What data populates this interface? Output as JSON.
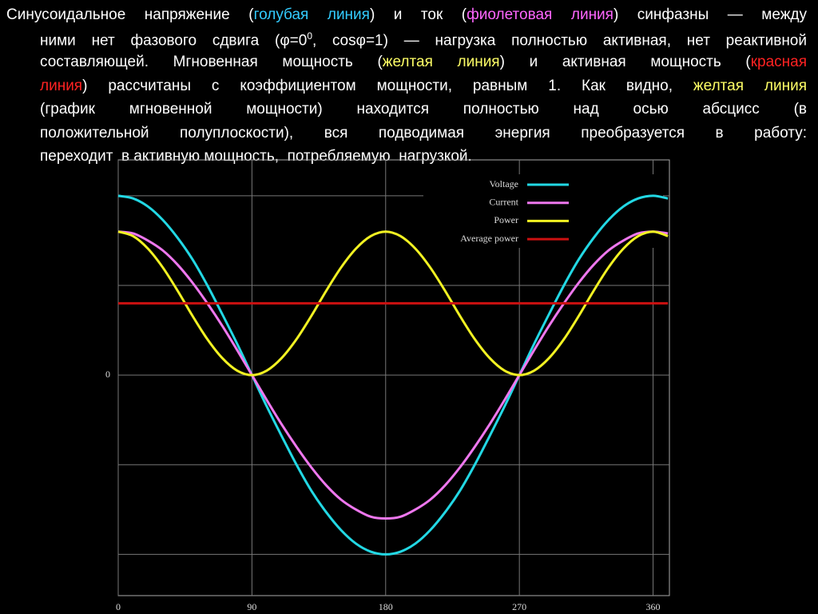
{
  "text": {
    "lines": [
      [
        {
          "text": "Синусоидальное  напряжение  (",
          "color": "#ffffff"
        },
        {
          "text": "голубая линия",
          "color": "#33ccff"
        },
        {
          "text": ")  и ток (",
          "color": "#ffffff"
        },
        {
          "text": "фиолетовая линия",
          "color": "#ff66ff"
        },
        {
          "text": ")  синфазны — между",
          "color": "#ffffff"
        }
      ],
      [
        {
          "text": "ними  нет фазового сдвига (φ=0",
          "color": "#ffffff"
        },
        {
          "text": "0",
          "color": "#ffffff",
          "sup": true
        },
        {
          "text": ", cosφ=1) — нагрузка полностью  активная,  нет реактивной",
          "color": "#ffffff"
        }
      ],
      [
        {
          "text": "составляющей. Мгновенная мощность (",
          "color": "#ffffff"
        },
        {
          "text": "желтая линия",
          "color": "#ffff66"
        },
        {
          "text": ")  и активная мощность (",
          "color": "#ffffff"
        },
        {
          "text": "красная",
          "color": "#ff2222"
        }
      ],
      [
        {
          "text": "линия",
          "color": "#ff2222"
        },
        {
          "text": ")  рассчитаны с коэффициентом  мощности,  равным  1. Как видно, ",
          "color": "#ffffff"
        },
        {
          "text": "желтая линия",
          "color": "#ffff66"
        }
      ],
      [
        {
          "text": "(график мгновенной  мощности)  находится полностью  над осью абсцисс (в",
          "color": "#ffffff"
        }
      ],
      [
        {
          "text": "положительной  полуплоскости),  вся подводимая  энергия преобразуется  в работу:",
          "color": "#ffffff"
        }
      ],
      [
        {
          "text": "переходит  в активную мощность,  потребляемую  нагрузкой.",
          "color": "#ffffff"
        }
      ]
    ]
  },
  "chart_data": {
    "type": "line",
    "x": [
      0,
      10,
      20,
      30,
      40,
      50,
      60,
      70,
      80,
      90,
      100,
      110,
      120,
      130,
      140,
      150,
      160,
      170,
      180,
      190,
      200,
      210,
      220,
      230,
      240,
      250,
      260,
      270,
      280,
      290,
      300,
      310,
      320,
      330,
      340,
      350,
      360,
      370
    ],
    "series": [
      {
        "name": "Voltage",
        "color": "#22d8e4",
        "values": [
          2,
          1.97,
          1.88,
          1.73,
          1.53,
          1.29,
          1,
          0.68,
          0.35,
          0,
          -0.35,
          -0.68,
          -1,
          -1.29,
          -1.53,
          -1.73,
          -1.88,
          -1.97,
          -2,
          -1.97,
          -1.88,
          -1.73,
          -1.53,
          -1.29,
          -1,
          -0.68,
          -0.35,
          0,
          0.35,
          0.68,
          1,
          1.29,
          1.53,
          1.73,
          1.88,
          1.97,
          2,
          1.97
        ]
      },
      {
        "name": "Current",
        "color": "#ee77ee",
        "values": [
          1.6,
          1.58,
          1.5,
          1.39,
          1.23,
          1.03,
          0.8,
          0.55,
          0.28,
          0,
          -0.28,
          -0.55,
          -0.8,
          -1.03,
          -1.23,
          -1.39,
          -1.5,
          -1.58,
          -1.6,
          -1.58,
          -1.5,
          -1.39,
          -1.23,
          -1.03,
          -0.8,
          -0.55,
          -0.28,
          0,
          0.28,
          0.55,
          0.8,
          1.03,
          1.23,
          1.39,
          1.5,
          1.58,
          1.6,
          1.58
        ]
      },
      {
        "name": "Power",
        "color": "#f2f222",
        "values": [
          1.6,
          1.55,
          1.41,
          1.2,
          0.94,
          0.66,
          0.4,
          0.19,
          0.05,
          0,
          0.05,
          0.19,
          0.4,
          0.66,
          0.94,
          1.2,
          1.41,
          1.55,
          1.6,
          1.55,
          1.41,
          1.2,
          0.94,
          0.66,
          0.4,
          0.19,
          0.05,
          0,
          0.05,
          0.19,
          0.4,
          0.66,
          0.94,
          1.2,
          1.41,
          1.55,
          1.6,
          1.55
        ]
      },
      {
        "name": "Average power",
        "color": "#cc1111",
        "values": [
          0.8,
          0.8,
          0.8,
          0.8,
          0.8,
          0.8,
          0.8,
          0.8,
          0.8,
          0.8,
          0.8,
          0.8,
          0.8,
          0.8,
          0.8,
          0.8,
          0.8,
          0.8,
          0.8,
          0.8,
          0.8,
          0.8,
          0.8,
          0.8,
          0.8,
          0.8,
          0.8,
          0.8,
          0.8,
          0.8,
          0.8,
          0.8,
          0.8,
          0.8,
          0.8,
          0.8,
          0.8,
          0.8
        ]
      }
    ],
    "xlim": [
      0,
      371
    ],
    "xticks": [
      0,
      90,
      180,
      270,
      360
    ],
    "ylim": [
      -2.46,
      2.4
    ],
    "yticks": [
      {
        "value": -2,
        "label": null
      },
      {
        "value": -1,
        "label": null
      },
      0,
      {
        "value": 1,
        "label": null
      },
      {
        "value": 2,
        "label": null
      }
    ],
    "grid": true,
    "legend": "top-right"
  }
}
